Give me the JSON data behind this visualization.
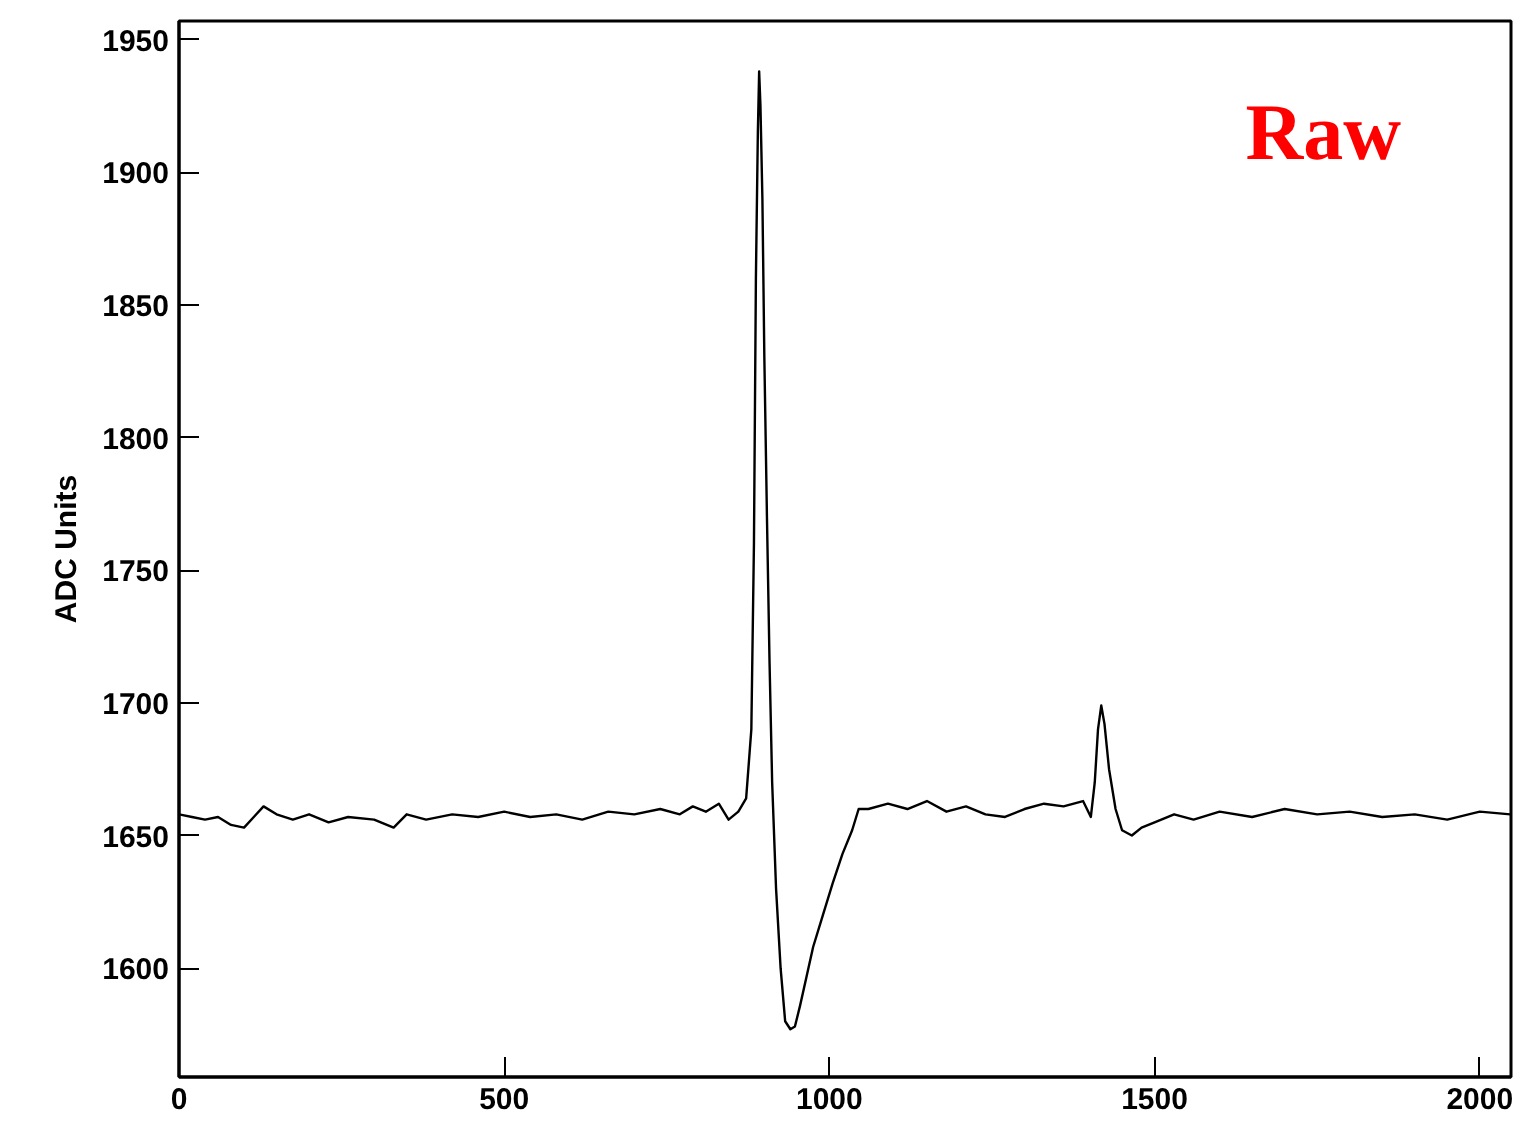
{
  "chart_data": {
    "type": "line",
    "ylabel": "ADC Units",
    "annotations": [
      "Raw"
    ],
    "grid": false,
    "marker": "none",
    "line_style": "solid",
    "xlim": [
      0,
      2048
    ],
    "ylim": [
      1559,
      1957
    ],
    "xticks": [
      0,
      500,
      1000,
      1500,
      2000
    ],
    "yticks": [
      1600,
      1650,
      1700,
      1750,
      1800,
      1850,
      1900,
      1950
    ],
    "series": [
      {
        "color": "#000000",
        "x": [
          0,
          20,
          40,
          60,
          80,
          100,
          115,
          130,
          150,
          175,
          200,
          230,
          260,
          300,
          330,
          350,
          380,
          420,
          460,
          500,
          540,
          580,
          620,
          660,
          700,
          740,
          770,
          790,
          810,
          830,
          845,
          860,
          872,
          880,
          884,
          887,
          890,
          892,
          894,
          897,
          900,
          904,
          908,
          912,
          918,
          925,
          932,
          940,
          947,
          955,
          965,
          975,
          990,
          1005,
          1020,
          1035,
          1045,
          1060,
          1090,
          1120,
          1150,
          1180,
          1210,
          1240,
          1270,
          1300,
          1330,
          1360,
          1390,
          1402,
          1408,
          1413,
          1418,
          1423,
          1430,
          1440,
          1450,
          1465,
          1480,
          1500,
          1530,
          1560,
          1600,
          1650,
          1700,
          1750,
          1800,
          1850,
          1900,
          1950,
          2000,
          2047
        ],
        "values": [
          1658,
          1657,
          1656,
          1657,
          1654,
          1653,
          1657,
          1661,
          1658,
          1656,
          1658,
          1655,
          1657,
          1656,
          1653,
          1658,
          1656,
          1658,
          1657,
          1659,
          1657,
          1658,
          1656,
          1659,
          1658,
          1660,
          1658,
          1661,
          1659,
          1662,
          1656,
          1659,
          1664,
          1690,
          1760,
          1860,
          1915,
          1938,
          1925,
          1890,
          1830,
          1770,
          1715,
          1670,
          1630,
          1600,
          1580,
          1577,
          1578,
          1586,
          1597,
          1608,
          1620,
          1632,
          1643,
          1652,
          1660,
          1660,
          1662,
          1660,
          1663,
          1659,
          1661,
          1658,
          1657,
          1660,
          1662,
          1661,
          1663,
          1657,
          1670,
          1690,
          1699,
          1692,
          1675,
          1660,
          1652,
          1650,
          1653,
          1655,
          1658,
          1656,
          1659,
          1657,
          1660,
          1658,
          1659,
          1657,
          1658,
          1656,
          1659,
          1658
        ]
      }
    ]
  }
}
